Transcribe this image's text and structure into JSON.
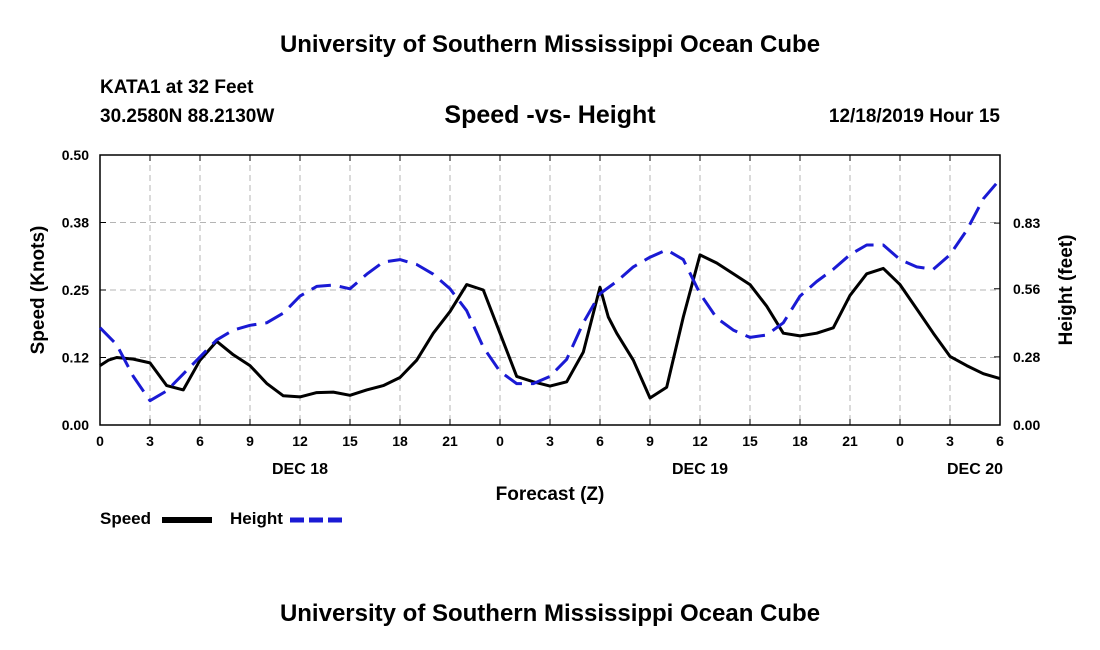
{
  "page": {
    "header_title": "University of Southern Mississippi Ocean Cube",
    "footer_title": "University of Southern Mississippi Ocean Cube",
    "station_line": "KATA1 at 32 Feet",
    "coords_line": "30.2580N 88.2130W",
    "date_line": "12/18/2019 Hour 15"
  },
  "chart_data": {
    "type": "line",
    "title": "Speed -vs- Height",
    "xlabel": "Forecast (Z)",
    "ylabel_left": "Speed (Knots)",
    "ylabel_right": "Height (feet)",
    "x_range_hours": [
      0,
      54
    ],
    "x_tick_labels": [
      "0",
      "3",
      "6",
      "9",
      "12",
      "15",
      "18",
      "21",
      "0",
      "3",
      "6",
      "9",
      "12",
      "15",
      "18",
      "21",
      "0",
      "3",
      "6"
    ],
    "date_labels": [
      {
        "label": "DEC 18",
        "hour": 12
      },
      {
        "label": "DEC 19",
        "hour": 36
      },
      {
        "label": "DEC 20",
        "hour": 52.5
      }
    ],
    "ylim_left": [
      0,
      0.5
    ],
    "yticks_left": [
      0.0,
      0.125,
      0.25,
      0.375,
      0.5
    ],
    "ytick_labels_left": [
      "0.00",
      "0.12",
      "0.25",
      "0.38",
      "0.50"
    ],
    "ylim_right": [
      0,
      1.11
    ],
    "yticks_right": [
      0.0,
      0.28,
      0.56,
      0.83
    ],
    "ytick_labels_right": [
      "0.00",
      "0.28",
      "0.56",
      "0.83"
    ],
    "grid": true,
    "legend_position": "bottom-left",
    "series": [
      {
        "name": "Speed",
        "axis": "left",
        "color": "#000000",
        "style": "solid",
        "x": [
          0,
          0.5,
          1,
          2,
          3,
          4,
          5,
          6,
          7,
          8,
          9,
          10,
          11,
          12,
          13,
          14,
          15,
          16,
          17,
          18,
          19,
          20,
          21,
          22,
          23,
          24,
          25,
          26,
          27,
          28,
          29,
          30,
          30.5,
          31,
          32,
          33,
          34,
          35,
          36,
          37,
          38,
          39,
          40,
          41,
          42,
          43,
          44,
          45,
          46,
          47,
          48,
          49,
          50,
          51,
          52,
          53,
          54
        ],
        "values": [
          0.11,
          0.12,
          0.125,
          0.122,
          0.115,
          0.073,
          0.065,
          0.12,
          0.155,
          0.13,
          0.11,
          0.077,
          0.054,
          0.052,
          0.06,
          0.061,
          0.055,
          0.065,
          0.073,
          0.088,
          0.12,
          0.17,
          0.21,
          0.26,
          0.25,
          0.17,
          0.09,
          0.08,
          0.072,
          0.08,
          0.135,
          0.255,
          0.2,
          0.17,
          0.12,
          0.05,
          0.07,
          0.2,
          0.315,
          0.3,
          0.28,
          0.26,
          0.22,
          0.17,
          0.165,
          0.17,
          0.18,
          0.24,
          0.28,
          0.29,
          0.26,
          0.215,
          0.17,
          0.127,
          0.11,
          0.095,
          0.086
        ]
      },
      {
        "name": "Height",
        "axis": "right",
        "color": "#1a1ad4",
        "style": "dashed",
        "x": [
          0,
          1,
          2,
          3,
          4,
          5,
          6,
          7,
          8,
          9,
          10,
          11,
          12,
          13,
          14,
          15,
          16,
          17,
          18,
          19,
          20,
          21,
          22,
          23,
          24,
          25,
          26,
          27,
          28,
          29,
          30,
          31,
          32,
          33,
          34,
          35,
          36,
          37,
          38,
          39,
          40,
          41,
          42,
          43,
          44,
          45,
          46,
          47,
          48,
          49,
          50,
          51,
          52,
          53,
          54
        ],
        "values": [
          0.4,
          0.33,
          0.2,
          0.1,
          0.14,
          0.21,
          0.28,
          0.35,
          0.39,
          0.41,
          0.42,
          0.46,
          0.53,
          0.57,
          0.575,
          0.56,
          0.62,
          0.67,
          0.68,
          0.66,
          0.62,
          0.56,
          0.47,
          0.32,
          0.22,
          0.17,
          0.17,
          0.2,
          0.27,
          0.42,
          0.54,
          0.59,
          0.65,
          0.69,
          0.72,
          0.68,
          0.54,
          0.44,
          0.39,
          0.36,
          0.37,
          0.42,
          0.53,
          0.59,
          0.64,
          0.7,
          0.74,
          0.74,
          0.68,
          0.65,
          0.64,
          0.7,
          0.8,
          0.93,
          1.01
        ]
      }
    ]
  }
}
